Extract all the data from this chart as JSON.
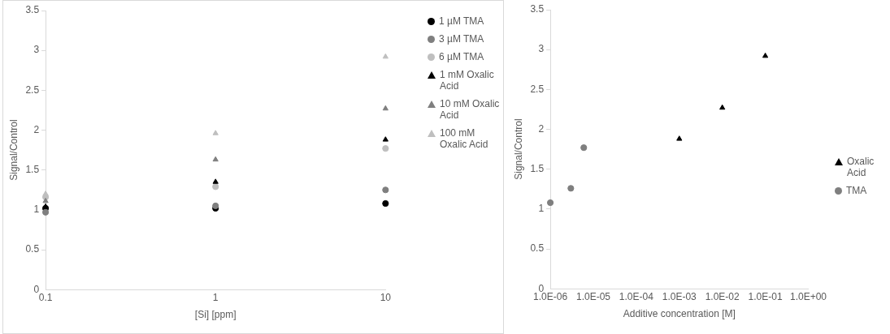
{
  "chart_data": [
    {
      "type": "scatter",
      "xlabel": "[Si] [ppm]",
      "ylabel": "Signal/Control",
      "log": "x",
      "xlim": [
        0.1,
        10
      ],
      "xticks": [
        0.1,
        1,
        10
      ],
      "ylim": [
        0,
        3.5
      ],
      "yticks": [
        0,
        0.5,
        1,
        1.5,
        2,
        2.5,
        3,
        3.5
      ],
      "grid": false,
      "legend": "right",
      "series": [
        {
          "name": "1 µM TMA",
          "color": "#000000",
          "marker": "circle",
          "x": [
            0.1,
            1,
            10
          ],
          "values": [
            1.02,
            1.02,
            1.08
          ]
        },
        {
          "name": "3 µM TMA",
          "color": "#7f7f7f",
          "marker": "circle",
          "x": [
            0.1,
            1,
            10
          ],
          "values": [
            0.97,
            1.05,
            1.25
          ]
        },
        {
          "name": "6 µM TMA",
          "color": "#bfbfbf",
          "marker": "circle",
          "x": [
            0.1,
            1,
            10
          ],
          "values": [
            1.16,
            1.29,
            1.77
          ]
        },
        {
          "name": "1 mM Oxalic Acid",
          "color": "#000000",
          "marker": "triangle",
          "x": [
            0.1,
            1,
            10
          ],
          "values": [
            1.04,
            1.35,
            1.88
          ]
        },
        {
          "name": "10 mM Oxalic Acid",
          "color": "#7f7f7f",
          "marker": "triangle",
          "x": [
            0.1,
            1,
            10
          ],
          "values": [
            1.11,
            1.63,
            2.27
          ]
        },
        {
          "name": "100 mM Oxalic Acid",
          "color": "#bfbfbf",
          "marker": "triangle",
          "x": [
            0.1,
            1,
            10
          ],
          "values": [
            1.2,
            1.96,
            2.92
          ]
        }
      ]
    },
    {
      "type": "scatter",
      "xlabel": "Additive concentration [M]",
      "ylabel": "Signal/Control",
      "log": "x",
      "xlim": [
        1e-06,
        1
      ],
      "xticks": [
        {
          "value": 1e-06,
          "label": "1.0E-06"
        },
        {
          "value": 1e-05,
          "label": "1.0E-05"
        },
        {
          "value": 0.0001,
          "label": "1.0E-04"
        },
        {
          "value": 0.001,
          "label": "1.0E-03"
        },
        {
          "value": 0.01,
          "label": "1.0E-02"
        },
        {
          "value": 0.1,
          "label": "1.0E-01"
        },
        {
          "value": 1,
          "label": "1.0E+00"
        }
      ],
      "ylim": [
        0,
        3.5
      ],
      "yticks": [
        0,
        0.5,
        1,
        1.5,
        2,
        2.5,
        3,
        3.5
      ],
      "grid": false,
      "legend": "right",
      "series": [
        {
          "name": "Oxalic Acid",
          "color": "#000000",
          "marker": "triangle",
          "x": [
            0.001,
            0.01,
            0.1
          ],
          "values": [
            1.88,
            2.27,
            2.92
          ]
        },
        {
          "name": "TMA",
          "color": "#7f7f7f",
          "marker": "circle",
          "x": [
            1e-06,
            3e-06,
            6e-06
          ],
          "values": [
            1.08,
            1.26,
            1.77
          ]
        }
      ]
    }
  ]
}
